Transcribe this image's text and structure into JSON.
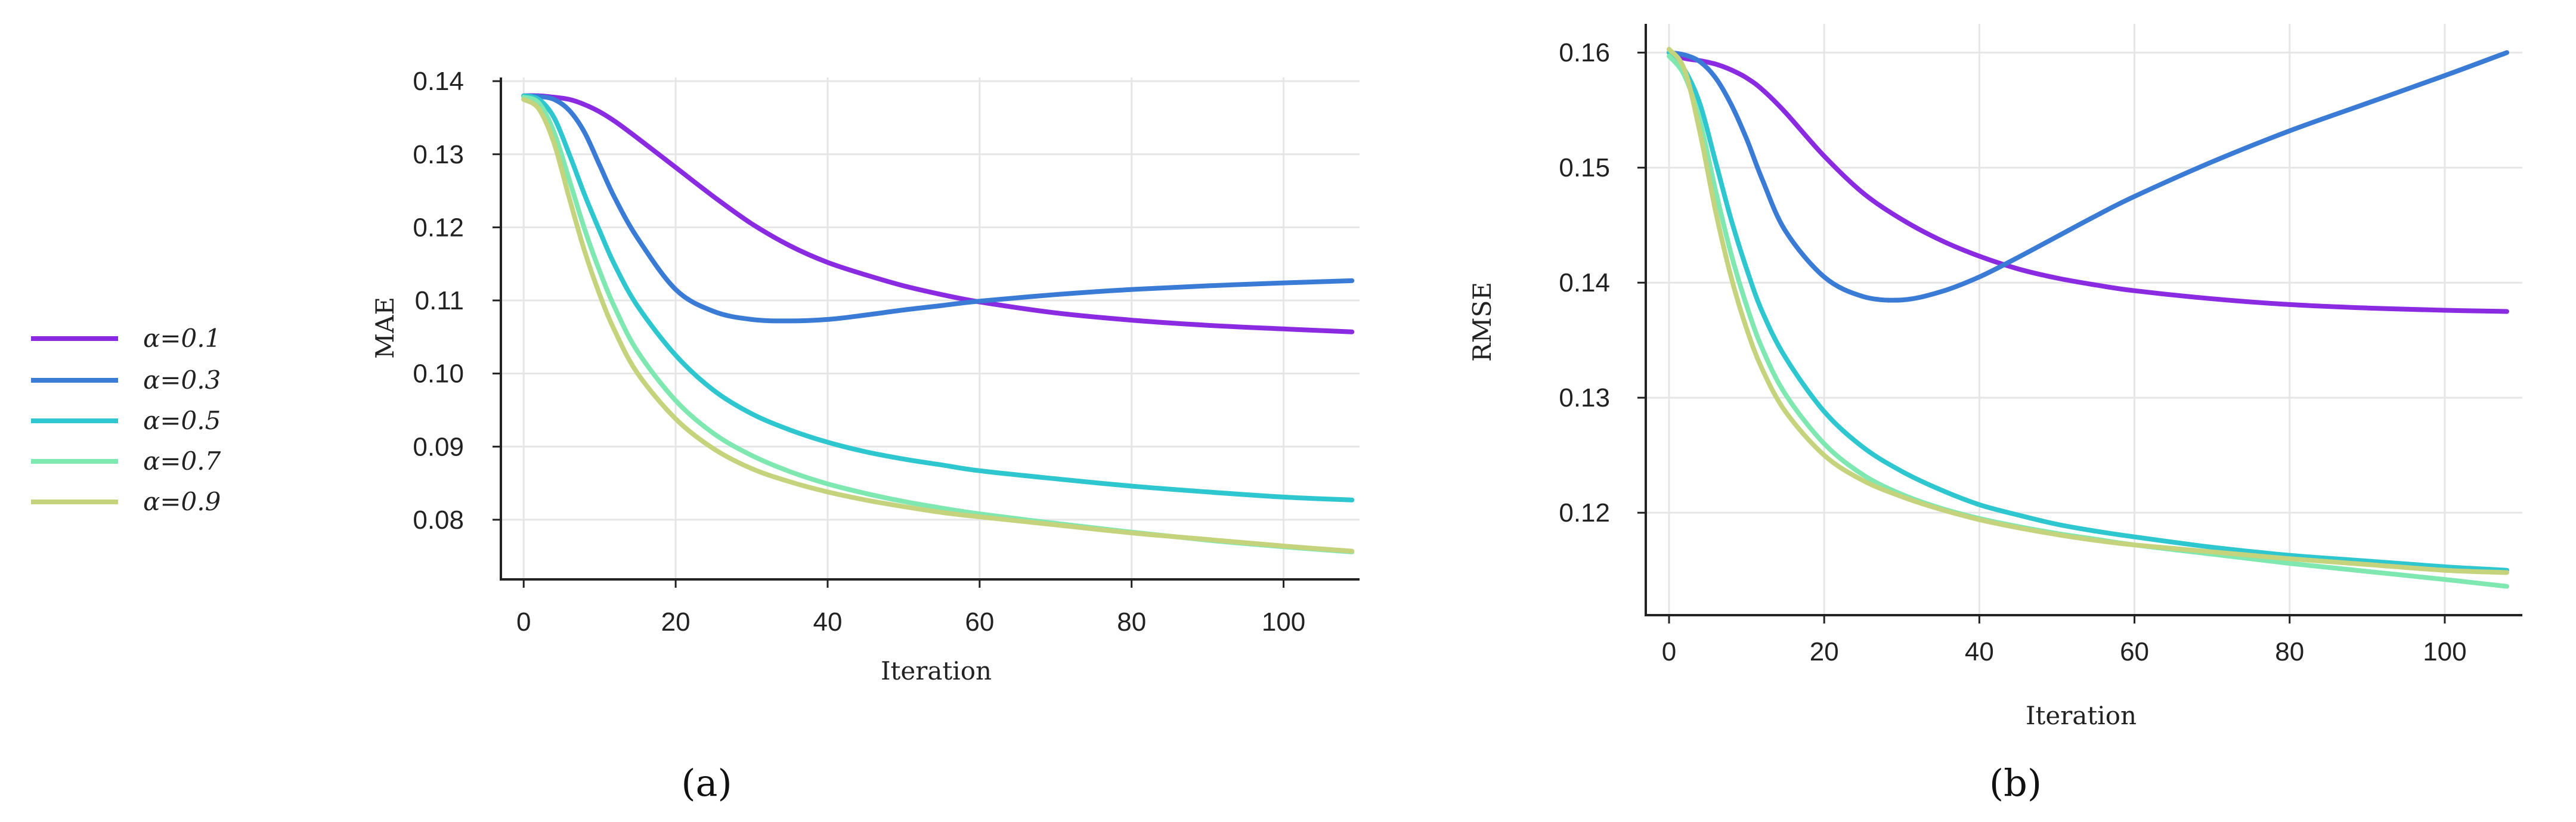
{
  "legend": [
    {
      "name": "α=0.1",
      "color": "#8A2BE2"
    },
    {
      "name": "α=0.3",
      "color": "#3A7BD5"
    },
    {
      "name": "α=0.5",
      "color": "#2EC7CF"
    },
    {
      "name": "α=0.7",
      "color": "#7EE8B0"
    },
    {
      "name": "α=0.9",
      "color": "#C5D37D"
    }
  ],
  "chart_data": [
    {
      "type": "line",
      "panel_label": "(a)",
      "xlabel": "Iteration",
      "ylabel": "MAE",
      "xlim": [
        -3,
        110
      ],
      "ylim": [
        0.072,
        0.1405
      ],
      "xticks": [
        0,
        20,
        40,
        60,
        80,
        100
      ],
      "yticks": [
        0.08,
        0.09,
        0.1,
        0.11,
        0.12,
        0.13,
        0.14
      ],
      "ytick_labels": [
        "0.08",
        "0.09",
        "0.10",
        "0.11",
        "0.12",
        "0.13",
        "0.14"
      ],
      "x": [
        0,
        2,
        4,
        6,
        8,
        10,
        12,
        15,
        20,
        25,
        30,
        35,
        40,
        45,
        50,
        55,
        60,
        70,
        80,
        90,
        100,
        109
      ],
      "series": [
        {
          "name": "α=0.1",
          "values": [
            0.138,
            0.138,
            0.1378,
            0.1375,
            0.1368,
            0.1358,
            0.1345,
            0.1322,
            0.1282,
            0.1242,
            0.1205,
            0.1175,
            0.1152,
            0.1135,
            0.112,
            0.1108,
            0.1098,
            0.1083,
            0.1073,
            0.1066,
            0.1061,
            0.1057
          ]
        },
        {
          "name": "α=0.3",
          "values": [
            0.138,
            0.1379,
            0.1375,
            0.136,
            0.133,
            0.1285,
            0.124,
            0.1185,
            0.1115,
            0.1085,
            0.1074,
            0.1072,
            0.1074,
            0.108,
            0.1087,
            0.1093,
            0.1099,
            0.1108,
            0.1115,
            0.112,
            0.1124,
            0.1127
          ]
        },
        {
          "name": "α=0.5",
          "values": [
            0.138,
            0.1375,
            0.135,
            0.13,
            0.1245,
            0.1195,
            0.1148,
            0.1092,
            0.1025,
            0.0977,
            0.0945,
            0.0923,
            0.0906,
            0.0893,
            0.0883,
            0.0875,
            0.0867,
            0.0856,
            0.0846,
            0.0838,
            0.0831,
            0.0827
          ]
        },
        {
          "name": "α=0.7",
          "values": [
            0.1378,
            0.137,
            0.133,
            0.1265,
            0.1198,
            0.114,
            0.109,
            0.103,
            0.0963,
            0.0918,
            0.0888,
            0.0866,
            0.0849,
            0.0836,
            0.0825,
            0.0816,
            0.0808,
            0.0795,
            0.0783,
            0.0772,
            0.0763,
            0.0756
          ]
        },
        {
          "name": "α=0.9",
          "values": [
            0.1375,
            0.1362,
            0.1315,
            0.124,
            0.1168,
            0.1108,
            0.1058,
            0.1,
            0.0938,
            0.0897,
            0.087,
            0.0852,
            0.0838,
            0.0827,
            0.0818,
            0.081,
            0.0804,
            0.0793,
            0.0782,
            0.0773,
            0.0764,
            0.0757
          ]
        }
      ]
    },
    {
      "type": "line",
      "panel_label": "(b)",
      "xlabel": "Iteration",
      "ylabel": "RMSE",
      "xlim": [
        -3,
        110
      ],
      "ylim": [
        0.1112,
        0.1625
      ],
      "xticks": [
        0,
        20,
        40,
        60,
        80,
        100
      ],
      "yticks": [
        0.12,
        0.13,
        0.14,
        0.15,
        0.16
      ],
      "ytick_labels": [
        "0.12",
        "0.13",
        "0.14",
        "0.15",
        "0.16"
      ],
      "x": [
        0,
        2,
        4,
        6,
        8,
        10,
        12,
        15,
        20,
        25,
        30,
        35,
        40,
        45,
        50,
        55,
        60,
        70,
        80,
        90,
        100,
        108
      ],
      "series": [
        {
          "name": "α=0.1",
          "values": [
            0.16,
            0.1595,
            0.1593,
            0.159,
            0.1585,
            0.1578,
            0.1568,
            0.1548,
            0.151,
            0.1478,
            0.1455,
            0.1437,
            0.1423,
            0.1412,
            0.1404,
            0.1398,
            0.1393,
            0.1386,
            0.1381,
            0.1378,
            0.1376,
            0.1375
          ]
        },
        {
          "name": "α=0.3",
          "values": [
            0.16,
            0.1598,
            0.1592,
            0.1578,
            0.1555,
            0.1525,
            0.149,
            0.1445,
            0.1405,
            0.1388,
            0.1385,
            0.1392,
            0.1405,
            0.1422,
            0.144,
            0.1458,
            0.1475,
            0.1505,
            0.1532,
            0.1556,
            0.158,
            0.16
          ]
        },
        {
          "name": "α=0.5",
          "values": [
            0.16,
            0.1585,
            0.1555,
            0.1505,
            0.1455,
            0.1412,
            0.1375,
            0.1335,
            0.1288,
            0.1257,
            0.1236,
            0.122,
            0.1207,
            0.1198,
            0.119,
            0.1184,
            0.1179,
            0.117,
            0.1163,
            0.1158,
            0.1153,
            0.115
          ]
        },
        {
          "name": "α=0.7",
          "values": [
            0.1597,
            0.158,
            0.154,
            0.148,
            0.1425,
            0.138,
            0.1343,
            0.1303,
            0.126,
            0.1233,
            0.1216,
            0.1204,
            0.1195,
            0.1188,
            0.1182,
            0.1177,
            0.1172,
            0.1164,
            0.1156,
            0.1149,
            0.1142,
            0.1136
          ]
        },
        {
          "name": "α=0.9",
          "values": [
            0.1603,
            0.1585,
            0.153,
            0.1462,
            0.1405,
            0.136,
            0.1325,
            0.1288,
            0.125,
            0.1228,
            0.1214,
            0.1203,
            0.1194,
            0.1187,
            0.1181,
            0.1176,
            0.1172,
            0.1166,
            0.116,
            0.1155,
            0.115,
            0.1148
          ]
        }
      ]
    }
  ]
}
